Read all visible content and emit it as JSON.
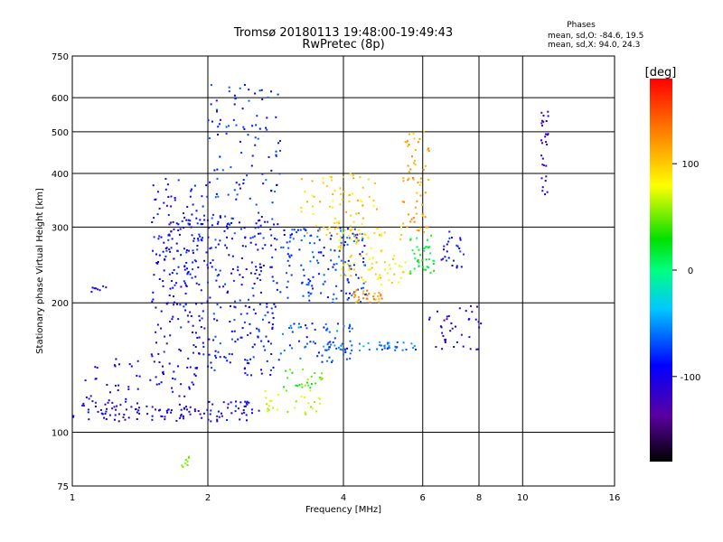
{
  "chart_data": {
    "type": "scatter",
    "title_line1": "Tromsø 20180113 19:48:00-19:49:43",
    "title_line2": "RwPretec (8p)",
    "stats": {
      "heading": "Phases",
      "line1": "mean, sd,O: -84.6, 19.5",
      "line2": "mean, sd,X:  94.0, 24.3"
    },
    "xlabel": "Frequency [MHz]",
    "ylabel": "Stationary phase Virtual Height [km]",
    "x_scale": "log",
    "y_scale": "log",
    "xlim": [
      1,
      16
    ],
    "ylim": [
      75,
      750
    ],
    "x_ticks": [
      1,
      2,
      4,
      6,
      8,
      10,
      16
    ],
    "y_ticks": [
      75,
      100,
      200,
      300,
      400,
      500,
      600,
      750
    ],
    "x_grid": [
      2,
      4,
      6,
      8,
      10
    ],
    "y_grid": [
      100,
      200,
      300,
      400,
      500,
      600
    ],
    "grid": true,
    "colorbar": {
      "label": "[deg]",
      "range": [
        -180,
        180
      ],
      "ticks": [
        100,
        0,
        -100
      ]
    },
    "clusters": [
      {
        "f": [
          1.0,
          2.0
        ],
        "h": [
          106,
          116
        ],
        "phase": -105,
        "n": 70
      },
      {
        "f": [
          1.05,
          1.9
        ],
        "h": [
          112,
          150
        ],
        "phase": -100,
        "n": 80
      },
      {
        "f": [
          1.5,
          2.0
        ],
        "h": [
          150,
          390
        ],
        "phase": -95,
        "n": 160
      },
      {
        "f": [
          1.6,
          2.9
        ],
        "h": [
          195,
          320
        ],
        "phase": -90,
        "n": 160
      },
      {
        "f": [
          2.0,
          2.9
        ],
        "h": [
          280,
          650
        ],
        "phase": -80,
        "n": 120
      },
      {
        "f": [
          2.0,
          2.9
        ],
        "h": [
          135,
          200
        ],
        "phase": -85,
        "n": 90
      },
      {
        "f": [
          2.0,
          2.6
        ],
        "h": [
          106,
          118
        ],
        "phase": -100,
        "n": 40
      },
      {
        "f": [
          2.9,
          4.5
        ],
        "h": [
          200,
          300
        ],
        "phase": -75,
        "n": 150
      },
      {
        "f": [
          2.9,
          4.2
        ],
        "h": [
          145,
          180
        ],
        "phase": -70,
        "n": 60
      },
      {
        "f": [
          3.2,
          4.8
        ],
        "h": [
          280,
          400
        ],
        "phase": 100,
        "n": 80
      },
      {
        "f": [
          3.9,
          5.6
        ],
        "h": [
          220,
          300
        ],
        "phase": 90,
        "n": 80
      },
      {
        "f": [
          4.2,
          4.9
        ],
        "h": [
          200,
          215
        ],
        "phase": 120,
        "n": 30
      },
      {
        "f": [
          2.6,
          3.6
        ],
        "h": [
          110,
          125
        ],
        "phase": 70,
        "n": 30
      },
      {
        "f": [
          2.9,
          3.6
        ],
        "h": [
          125,
          140
        ],
        "phase": 40,
        "n": 25
      },
      {
        "f": [
          5.4,
          6.2
        ],
        "h": [
          290,
          500
        ],
        "phase": 115,
        "n": 60
      },
      {
        "f": [
          5.6,
          6.4
        ],
        "h": [
          230,
          290
        ],
        "phase": 20,
        "n": 40
      },
      {
        "f": [
          3.6,
          5.8
        ],
        "h": [
          155,
          162
        ],
        "phase": -60,
        "n": 50
      },
      {
        "f": [
          6.2,
          8.1
        ],
        "h": [
          155,
          200
        ],
        "phase": -110,
        "n": 40
      },
      {
        "f": [
          6.6,
          7.4
        ],
        "h": [
          240,
          300
        ],
        "phase": -90,
        "n": 25
      },
      {
        "f": [
          11.0,
          11.4
        ],
        "h": [
          350,
          560
        ],
        "phase": -115,
        "n": 30
      },
      {
        "f": [
          1.1,
          1.2
        ],
        "h": [
          212,
          220
        ],
        "phase": -100,
        "n": 8
      },
      {
        "f": [
          1.75,
          1.85
        ],
        "h": [
          82,
          88
        ],
        "phase": 60,
        "n": 8
      }
    ]
  }
}
